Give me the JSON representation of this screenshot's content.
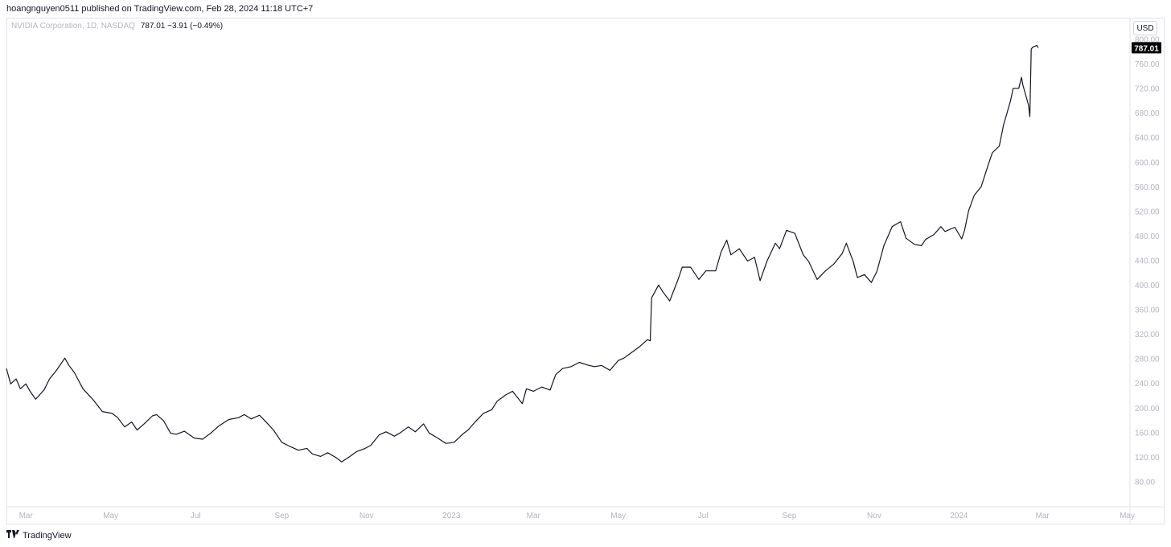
{
  "header": {
    "published_text": "hoangnguyen0511 published on TradingView.com, Feb 28, 2024 11:18 UTC+7"
  },
  "legend": {
    "symbol": "NVIDIA Corporation, 1D, NASDAQ",
    "ohlc": "787.01  −3.91  (−0.49%)"
  },
  "currency": "USD",
  "footer": {
    "logo_text": "TradingView",
    "logo_icon": "tradingview-logo-icon"
  },
  "colors": {
    "line": "#131722",
    "axis_text": "#b2b5be",
    "last_price_bg": "#000000"
  },
  "chart_data": {
    "type": "line",
    "title": "NVIDIA Corporation, 1D, NASDAQ",
    "last_price": "787.01",
    "y_ticks": [
      80,
      120,
      160,
      200,
      240,
      280,
      320,
      360,
      400,
      440,
      480,
      520,
      560,
      600,
      640,
      680,
      720,
      760,
      800
    ],
    "y_tick_labels": [
      "80.00",
      "120.00",
      "160.00",
      "200.00",
      "240.00",
      "280.00",
      "320.00",
      "360.00",
      "400.00",
      "440.00",
      "480.00",
      "520.00",
      "560.00",
      "600.00",
      "640.00",
      "680.00",
      "720.00",
      "760.00",
      "800.00"
    ],
    "x_tick_labels": [
      {
        "label": "Mar",
        "date": "2022-03-01"
      },
      {
        "label": "May",
        "date": "2022-05-01"
      },
      {
        "label": "Jul",
        "date": "2022-07-01"
      },
      {
        "label": "Sep",
        "date": "2022-09-01"
      },
      {
        "label": "Nov",
        "date": "2022-11-01"
      },
      {
        "label": "2023",
        "date": "2023-01-01"
      },
      {
        "label": "Mar",
        "date": "2023-03-01"
      },
      {
        "label": "May",
        "date": "2023-05-01"
      },
      {
        "label": "Jul",
        "date": "2023-07-01"
      },
      {
        "label": "Sep",
        "date": "2023-09-01"
      },
      {
        "label": "Nov",
        "date": "2023-11-01"
      },
      {
        "label": "2024",
        "date": "2024-01-01"
      },
      {
        "label": "Mar",
        "date": "2024-03-01"
      },
      {
        "label": "May",
        "date": "2024-05-01"
      }
    ],
    "x_range": [
      "2022-02-15",
      "2024-05-03"
    ],
    "ylim": [
      40,
      836
    ],
    "series": [
      {
        "points": [
          [
            "2022-02-15",
            265
          ],
          [
            "2022-02-18",
            240
          ],
          [
            "2022-02-22",
            248
          ],
          [
            "2022-02-25",
            232
          ],
          [
            "2022-03-01",
            240
          ],
          [
            "2022-03-04",
            228
          ],
          [
            "2022-03-08",
            215
          ],
          [
            "2022-03-14",
            230
          ],
          [
            "2022-03-18",
            248
          ],
          [
            "2022-03-23",
            262
          ],
          [
            "2022-03-29",
            282
          ],
          [
            "2022-04-01",
            270
          ],
          [
            "2022-04-05",
            258
          ],
          [
            "2022-04-11",
            232
          ],
          [
            "2022-04-18",
            215
          ],
          [
            "2022-04-25",
            195
          ],
          [
            "2022-05-02",
            192
          ],
          [
            "2022-05-06",
            185
          ],
          [
            "2022-05-11",
            170
          ],
          [
            "2022-05-16",
            178
          ],
          [
            "2022-05-20",
            165
          ],
          [
            "2022-05-25",
            175
          ],
          [
            "2022-05-31",
            188
          ],
          [
            "2022-06-03",
            190
          ],
          [
            "2022-06-08",
            180
          ],
          [
            "2022-06-13",
            160
          ],
          [
            "2022-06-17",
            158
          ],
          [
            "2022-06-23",
            163
          ],
          [
            "2022-06-30",
            152
          ],
          [
            "2022-07-06",
            150
          ],
          [
            "2022-07-12",
            160
          ],
          [
            "2022-07-18",
            172
          ],
          [
            "2022-07-25",
            182
          ],
          [
            "2022-08-01",
            185
          ],
          [
            "2022-08-05",
            190
          ],
          [
            "2022-08-10",
            183
          ],
          [
            "2022-08-16",
            189
          ],
          [
            "2022-08-22",
            175
          ],
          [
            "2022-08-26",
            165
          ],
          [
            "2022-09-01",
            145
          ],
          [
            "2022-09-07",
            138
          ],
          [
            "2022-09-13",
            132
          ],
          [
            "2022-09-19",
            135
          ],
          [
            "2022-09-23",
            126
          ],
          [
            "2022-09-29",
            122
          ],
          [
            "2022-10-04",
            128
          ],
          [
            "2022-10-10",
            120
          ],
          [
            "2022-10-14",
            113
          ],
          [
            "2022-10-20",
            122
          ],
          [
            "2022-10-25",
            130
          ],
          [
            "2022-10-31",
            135
          ],
          [
            "2022-11-04",
            140
          ],
          [
            "2022-11-10",
            157
          ],
          [
            "2022-11-15",
            162
          ],
          [
            "2022-11-21",
            155
          ],
          [
            "2022-11-25",
            160
          ],
          [
            "2022-12-01",
            170
          ],
          [
            "2022-12-06",
            162
          ],
          [
            "2022-12-12",
            175
          ],
          [
            "2022-12-16",
            160
          ],
          [
            "2022-12-22",
            152
          ],
          [
            "2022-12-28",
            143
          ],
          [
            "2023-01-03",
            145
          ],
          [
            "2023-01-09",
            158
          ],
          [
            "2023-01-13",
            165
          ],
          [
            "2023-01-18",
            178
          ],
          [
            "2023-01-24",
            192
          ],
          [
            "2023-01-30",
            198
          ],
          [
            "2023-02-03",
            212
          ],
          [
            "2023-02-09",
            222
          ],
          [
            "2023-02-14",
            228
          ],
          [
            "2023-02-21",
            208
          ],
          [
            "2023-02-24",
            232
          ],
          [
            "2023-03-01",
            228
          ],
          [
            "2023-03-07",
            235
          ],
          [
            "2023-03-13",
            230
          ],
          [
            "2023-03-17",
            255
          ],
          [
            "2023-03-22",
            265
          ],
          [
            "2023-03-28",
            268
          ],
          [
            "2023-04-03",
            275
          ],
          [
            "2023-04-10",
            270
          ],
          [
            "2023-04-14",
            268
          ],
          [
            "2023-04-19",
            270
          ],
          [
            "2023-04-25",
            262
          ],
          [
            "2023-05-01",
            278
          ],
          [
            "2023-05-05",
            282
          ],
          [
            "2023-05-10",
            290
          ],
          [
            "2023-05-16",
            300
          ],
          [
            "2023-05-22",
            312
          ],
          [
            "2023-05-24",
            310
          ],
          [
            "2023-05-25",
            380
          ],
          [
            "2023-05-30",
            401
          ],
          [
            "2023-06-02",
            390
          ],
          [
            "2023-06-07",
            375
          ],
          [
            "2023-06-13",
            410
          ],
          [
            "2023-06-16",
            430
          ],
          [
            "2023-06-22",
            430
          ],
          [
            "2023-06-28",
            410
          ],
          [
            "2023-07-03",
            424
          ],
          [
            "2023-07-10",
            424
          ],
          [
            "2023-07-14",
            455
          ],
          [
            "2023-07-18",
            474
          ],
          [
            "2023-07-21",
            450
          ],
          [
            "2023-07-27",
            460
          ],
          [
            "2023-08-02",
            440
          ],
          [
            "2023-08-07",
            446
          ],
          [
            "2023-08-11",
            408
          ],
          [
            "2023-08-16",
            440
          ],
          [
            "2023-08-22",
            469
          ],
          [
            "2023-08-25",
            460
          ],
          [
            "2023-08-30",
            490
          ],
          [
            "2023-09-05",
            485
          ],
          [
            "2023-09-11",
            450
          ],
          [
            "2023-09-15",
            439
          ],
          [
            "2023-09-21",
            410
          ],
          [
            "2023-09-27",
            424
          ],
          [
            "2023-10-03",
            435
          ],
          [
            "2023-10-09",
            452
          ],
          [
            "2023-10-12",
            469
          ],
          [
            "2023-10-17",
            439
          ],
          [
            "2023-10-20",
            413
          ],
          [
            "2023-10-25",
            418
          ],
          [
            "2023-10-30",
            405
          ],
          [
            "2023-11-03",
            423
          ],
          [
            "2023-11-08",
            465
          ],
          [
            "2023-11-14",
            496
          ],
          [
            "2023-11-20",
            504
          ],
          [
            "2023-11-24",
            477
          ],
          [
            "2023-11-30",
            467
          ],
          [
            "2023-12-05",
            465
          ],
          [
            "2023-12-08",
            475
          ],
          [
            "2023-12-14",
            483
          ],
          [
            "2023-12-19",
            496
          ],
          [
            "2023-12-22",
            488
          ],
          [
            "2023-12-29",
            495
          ],
          [
            "2024-01-03",
            476
          ],
          [
            "2024-01-05",
            490
          ],
          [
            "2024-01-08",
            522
          ],
          [
            "2024-01-12",
            547
          ],
          [
            "2024-01-17",
            561
          ],
          [
            "2024-01-22",
            596
          ],
          [
            "2024-01-25",
            616
          ],
          [
            "2024-01-30",
            627
          ],
          [
            "2024-02-02",
            661
          ],
          [
            "2024-02-07",
            700
          ],
          [
            "2024-02-09",
            721
          ],
          [
            "2024-02-13",
            721
          ],
          [
            "2024-02-15",
            739
          ],
          [
            "2024-02-16",
            726
          ],
          [
            "2024-02-20",
            694
          ],
          [
            "2024-02-21",
            675
          ],
          [
            "2024-02-22",
            785
          ],
          [
            "2024-02-23",
            788
          ],
          [
            "2024-02-26",
            791
          ],
          [
            "2024-02-27",
            787
          ]
        ]
      }
    ]
  }
}
